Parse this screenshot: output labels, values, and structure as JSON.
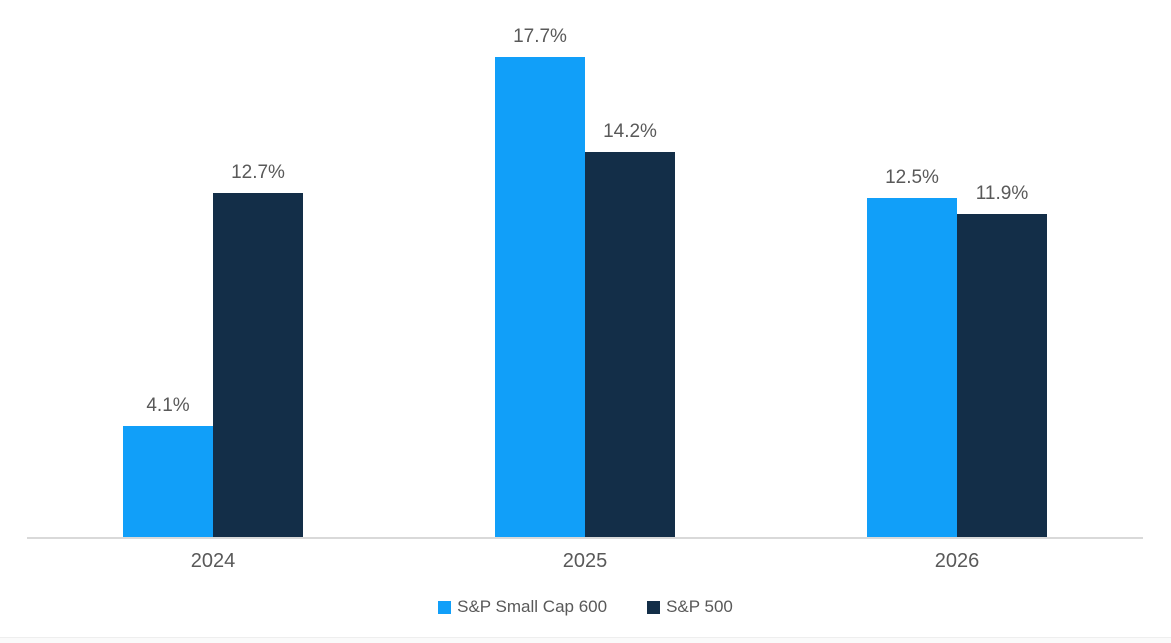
{
  "chart_data": {
    "type": "bar",
    "title": "",
    "xlabel": "",
    "ylabel": "",
    "categories": [
      "2024",
      "2025",
      "2026"
    ],
    "series": [
      {
        "name": "S&P Small Cap 600",
        "color": "#119FF9",
        "values": [
          4.1,
          17.7,
          12.5
        ],
        "labels": [
          "4.1%",
          "17.7%",
          "12.5%"
        ]
      },
      {
        "name": "S&P 500",
        "color": "#132E48",
        "values": [
          12.7,
          14.2,
          11.9
        ],
        "labels": [
          "12.7%",
          "14.2%",
          "11.9%"
        ]
      }
    ],
    "ylim": [
      0,
      19.8
    ],
    "grid": false,
    "legend_position": "bottom",
    "value_label_color": "#595959",
    "axis_tick_color": "#595959",
    "axis_line_color": "#d9d9d9",
    "background_color": "#ffffff"
  }
}
